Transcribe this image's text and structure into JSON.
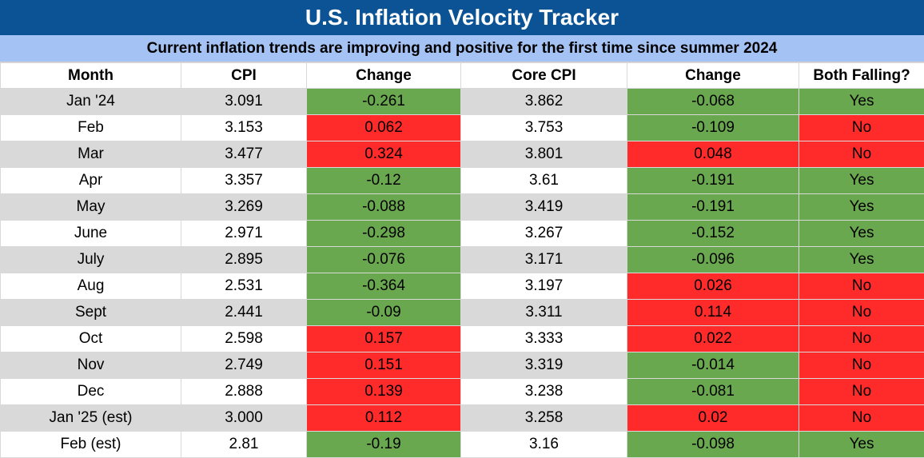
{
  "title": "U.S. Inflation Velocity Tracker",
  "subtitle": "Current inflation trends are improving and positive for the first time since summer 2024",
  "colors": {
    "header_bg": "#0b5394",
    "subheader_bg": "#a4c2f4",
    "good": "#6aa84f",
    "bad": "#ff2a2a",
    "shade": "#d9d9d9"
  },
  "chart_data": {
    "type": "table",
    "columns": [
      "Month",
      "CPI",
      "Change",
      "Core CPI",
      "Change",
      "Both Falling?"
    ],
    "rows": [
      [
        "Jan '24",
        "3.091",
        "-0.261",
        "3.862",
        "-0.068",
        "Yes"
      ],
      [
        "Feb",
        "3.153",
        "0.062",
        "3.753",
        "-0.109",
        "No"
      ],
      [
        "Mar",
        "3.477",
        "0.324",
        "3.801",
        "0.048",
        "No"
      ],
      [
        "Apr",
        "3.357",
        "-0.12",
        "3.61",
        "-0.191",
        "Yes"
      ],
      [
        "May",
        "3.269",
        "-0.088",
        "3.419",
        "-0.191",
        "Yes"
      ],
      [
        "June",
        "2.971",
        "-0.298",
        "3.267",
        "-0.152",
        "Yes"
      ],
      [
        "July",
        "2.895",
        "-0.076",
        "3.171",
        "-0.096",
        "Yes"
      ],
      [
        "Aug",
        "2.531",
        "-0.364",
        "3.197",
        "0.026",
        "No"
      ],
      [
        "Sept",
        "2.441",
        "-0.09",
        "3.311",
        "0.114",
        "No"
      ],
      [
        "Oct",
        "2.598",
        "0.157",
        "3.333",
        "0.022",
        "No"
      ],
      [
        "Nov",
        "2.749",
        "0.151",
        "3.319",
        "-0.014",
        "No"
      ],
      [
        "Dec",
        "2.888",
        "0.139",
        "3.238",
        "-0.081",
        "No"
      ],
      [
        "Jan '25 (est)",
        "3.000",
        "0.112",
        "3.258",
        "0.02",
        "No"
      ],
      [
        "Feb (est)",
        "2.81",
        "-0.19",
        "3.16",
        "-0.098",
        "Yes"
      ]
    ]
  }
}
